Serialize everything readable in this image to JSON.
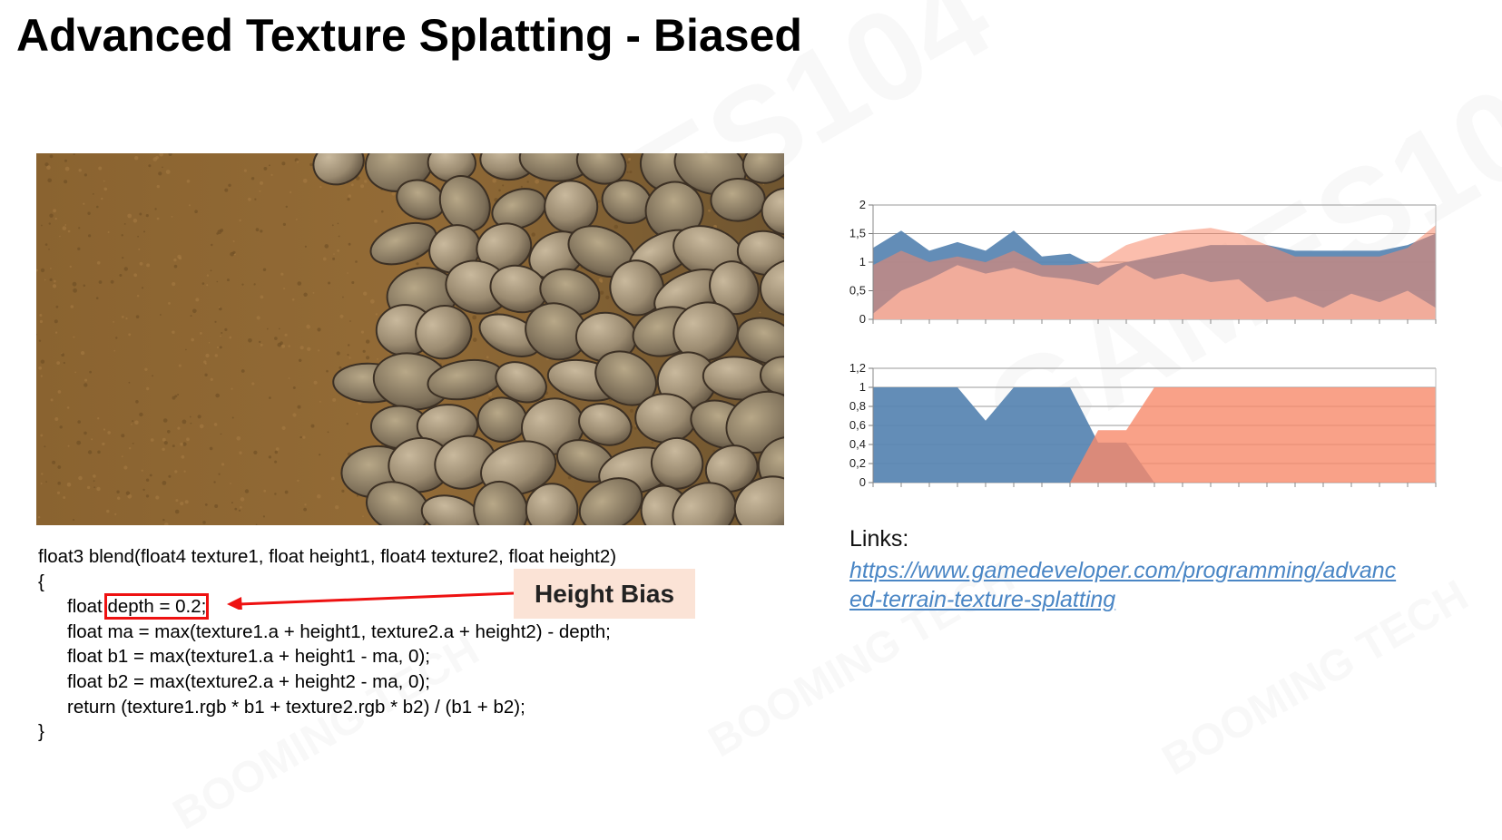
{
  "slide": {
    "title": "Advanced Texture Splatting - Biased",
    "watermark_text": "GAMES104",
    "watermark_logo": "BOOMING TECH"
  },
  "code": {
    "lines": [
      "float3 blend(float4 texture1, float height1, float4 texture2, float height2)",
      "{",
      "float",
      "depth = 0.2;",
      "float ma = max(texture1.a + height1, texture2.a + height2) - depth;",
      "float b1 = max(texture1.a + height1 - ma, 0);",
      "float b2 = max(texture2.a + height2 - ma, 0);",
      "return (texture1.rgb * b1 + texture2.rgb * b2) / (b1 + b2);",
      "}"
    ]
  },
  "annotation": {
    "label": "Height Bias",
    "box_color": "#ee1111",
    "label_bg": "#fbe3d6"
  },
  "links": {
    "heading": "Links:",
    "url_line1": "https://www.gamedeveloper.com/programming/advanc",
    "url_line2": "ed-terrain-texture-splatting",
    "url": "https://www.gamedeveloper.com/programming/advanced-terrain-texture-splatting"
  },
  "colors": {
    "blue": "#5b87b3",
    "orange": "#f8896a",
    "pale_blue": "#dde7f2",
    "pale_pink": "#f7e0dc",
    "link": "#4a86c5"
  },
  "chart_data": [
    {
      "type": "area",
      "title": "",
      "ylim": [
        0,
        2
      ],
      "yticks": [
        "0",
        "0,5",
        "1",
        "1,5",
        "2"
      ],
      "grid": true,
      "x": [
        0,
        1,
        2,
        3,
        4,
        5,
        6,
        7,
        8,
        9,
        10,
        11,
        12,
        13,
        14,
        15,
        16,
        17,
        18,
        19,
        20
      ],
      "series": [
        {
          "values": [
            1.25,
            1.55,
            1.2,
            1.35,
            1.2,
            1.55,
            1.1,
            1.15,
            0.9,
            1.0,
            1.1,
            1.2,
            1.3,
            1.3,
            1.3,
            1.2,
            1.2,
            1.2,
            1.2,
            1.3,
            1.5
          ]
        },
        {
          "values": [
            0.1,
            0.5,
            0.7,
            0.95,
            0.8,
            0.9,
            0.75,
            0.7,
            0.6,
            0.95,
            0.7,
            0.8,
            0.65,
            0.7,
            0.3,
            0.4,
            0.2,
            0.45,
            0.3,
            0.5,
            0.2
          ]
        },
        {
          "values": [
            0.95,
            1.2,
            1.0,
            1.1,
            1.0,
            1.2,
            0.95,
            0.95,
            1.0,
            1.3,
            1.45,
            1.55,
            1.6,
            1.5,
            1.3,
            1.1,
            1.1,
            1.1,
            1.1,
            1.25,
            1.65
          ]
        }
      ]
    },
    {
      "type": "area",
      "title": "",
      "ylim": [
        0,
        1.2
      ],
      "yticks": [
        "0",
        "0,2",
        "0,4",
        "0,6",
        "0,8",
        "1",
        "1,2"
      ],
      "grid": true,
      "x": [
        0,
        1,
        2,
        3,
        4,
        5,
        6,
        7,
        8,
        9,
        10,
        11,
        12,
        13,
        14,
        15,
        16,
        17,
        18,
        19,
        20
      ],
      "series": [
        {
          "values": [
            1,
            1,
            1,
            1,
            0.65,
            1,
            1,
            1,
            0.42,
            0.42,
            0,
            0,
            0,
            0,
            0,
            0,
            0,
            0,
            0,
            0,
            0
          ]
        },
        {
          "values": [
            0,
            0,
            0,
            0,
            0,
            0,
            0,
            0,
            0.55,
            0.55,
            1,
            1,
            1,
            1,
            1,
            1,
            1,
            1,
            1,
            1,
            1
          ]
        }
      ]
    }
  ]
}
